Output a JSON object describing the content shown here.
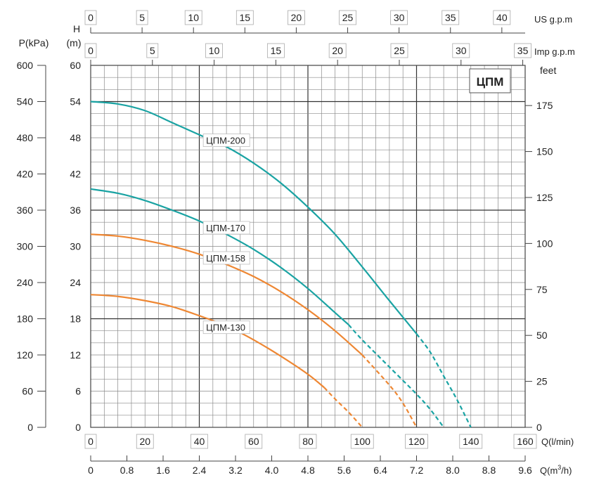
{
  "chart_data": {
    "type": "line",
    "title": "ЦПМ",
    "x_axis": {
      "label": "Q(l/min)",
      "range": [
        0,
        160
      ],
      "ticks": [
        "0",
        "20",
        "40",
        "60",
        "80",
        "100",
        "120",
        "140",
        "160"
      ]
    },
    "x_axis_m3h": {
      "label_prefix": "Q(m",
      "label_sup": "3",
      "label_suffix": "/h)",
      "ticks": [
        "0",
        "0.8",
        "1.6",
        "2.4",
        "3.2",
        "4.0",
        "4.8",
        "5.6",
        "6.4",
        "7.2",
        "8.0",
        "8.8",
        "9.6"
      ]
    },
    "x_axis_us": {
      "label": "US  g.p.m",
      "ticks": [
        "0",
        "5",
        "10",
        "15",
        "20",
        "25",
        "30",
        "35",
        "40"
      ]
    },
    "x_axis_imp": {
      "label": "Imp  g.p.m",
      "ticks": [
        "0",
        "5",
        "10",
        "15",
        "20",
        "25",
        "30",
        "35"
      ]
    },
    "y_axis_head": {
      "label_line1": "H",
      "label_line2": "(m)",
      "range": [
        0,
        60
      ],
      "ticks": [
        "0",
        "6",
        "12",
        "18",
        "24",
        "30",
        "36",
        "42",
        "48",
        "54",
        "60"
      ]
    },
    "y_axis_pressure": {
      "label": "P(kPa)",
      "ticks": [
        "0",
        "60",
        "120",
        "180",
        "240",
        "300",
        "360",
        "420",
        "480",
        "540",
        "600"
      ]
    },
    "y_axis_feet": {
      "label": "feet",
      "ticks": [
        "0",
        "25",
        "50",
        "75",
        "100",
        "125",
        "150",
        "175"
      ]
    },
    "grid": true,
    "series": [
      {
        "name": "ЦПМ-200",
        "color": "#1aa3a3",
        "solid": [
          [
            0,
            54
          ],
          [
            10,
            53.6
          ],
          [
            20,
            52.5
          ],
          [
            30,
            50.5
          ],
          [
            40,
            48.5
          ],
          [
            50,
            46.5
          ],
          [
            60,
            43.8
          ],
          [
            70,
            40.5
          ],
          [
            80,
            36.5
          ],
          [
            90,
            32
          ],
          [
            100,
            26.6
          ],
          [
            110,
            21
          ],
          [
            120,
            15.5
          ]
        ],
        "dashed": [
          [
            120,
            15.5
          ],
          [
            125,
            12.5
          ],
          [
            130,
            8.5
          ],
          [
            135,
            4.5
          ],
          [
            140,
            0
          ]
        ]
      },
      {
        "name": "ЦПМ-170",
        "color": "#1aa3a3",
        "solid": [
          [
            0,
            39.5
          ],
          [
            10,
            38.8
          ],
          [
            20,
            37.6
          ],
          [
            30,
            36
          ],
          [
            40,
            34.2
          ],
          [
            50,
            32
          ],
          [
            60,
            29.5
          ],
          [
            70,
            26.5
          ],
          [
            80,
            23
          ],
          [
            90,
            19
          ],
          [
            95,
            17
          ]
        ],
        "dashed": [
          [
            95,
            17
          ],
          [
            100,
            14.5
          ],
          [
            110,
            10
          ],
          [
            120,
            5.5
          ],
          [
            125,
            3
          ],
          [
            130,
            0
          ]
        ]
      },
      {
        "name": "ЦПМ-158",
        "color": "#ee8733",
        "solid": [
          [
            0,
            32
          ],
          [
            10,
            31.7
          ],
          [
            20,
            31
          ],
          [
            30,
            30
          ],
          [
            40,
            28.7
          ],
          [
            50,
            27
          ],
          [
            60,
            25
          ],
          [
            70,
            22.5
          ],
          [
            80,
            19.5
          ],
          [
            90,
            16
          ],
          [
            100,
            12
          ]
        ],
        "dashed": [
          [
            100,
            12
          ],
          [
            110,
            7
          ],
          [
            115,
            4
          ],
          [
            120,
            0
          ]
        ]
      },
      {
        "name": "ЦПМ-130",
        "color": "#ee8733",
        "solid": [
          [
            0,
            22
          ],
          [
            10,
            21.7
          ],
          [
            20,
            21
          ],
          [
            30,
            20
          ],
          [
            40,
            18.5
          ],
          [
            50,
            16.8
          ],
          [
            60,
            14.5
          ],
          [
            70,
            11.8
          ],
          [
            80,
            8.8
          ],
          [
            86,
            6.6
          ]
        ],
        "dashed": [
          [
            86,
            6.6
          ],
          [
            90,
            4.7
          ],
          [
            95,
            2.5
          ],
          [
            100,
            0
          ]
        ]
      }
    ],
    "label_positions_data_units": {
      "ЦПМ-200": [
        42.5,
        47
      ],
      "ЦПМ-170": [
        42.5,
        32.5
      ],
      "ЦПМ-158": [
        42.5,
        27.5
      ],
      "ЦПМ-130": [
        42.5,
        16
      ]
    }
  }
}
